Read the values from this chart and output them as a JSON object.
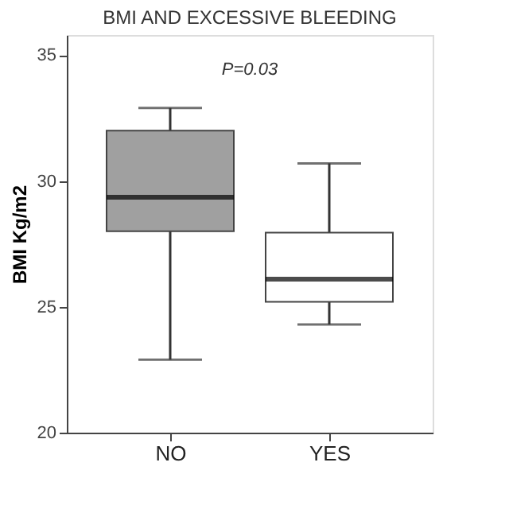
{
  "chart_data": {
    "type": "box",
    "title": "BMI AND EXCESSIVE BLEEDING",
    "ylabel": "BMI Kg/m2",
    "categories": [
      "NO",
      "YES"
    ],
    "boxes": [
      {
        "low": 22.9,
        "q1": 28.0,
        "median": 29.35,
        "q3": 32.0,
        "high": 32.9
      },
      {
        "low": 24.3,
        "q1": 25.2,
        "median": 26.1,
        "q3": 27.95,
        "high": 30.7
      }
    ],
    "colors": [
      "#a0a0a0",
      "#ffffff"
    ],
    "ylim": [
      20,
      35.8
    ],
    "yticks": [
      20,
      25,
      30,
      35
    ],
    "grid": false,
    "annotations": [
      "P=0.03"
    ]
  }
}
